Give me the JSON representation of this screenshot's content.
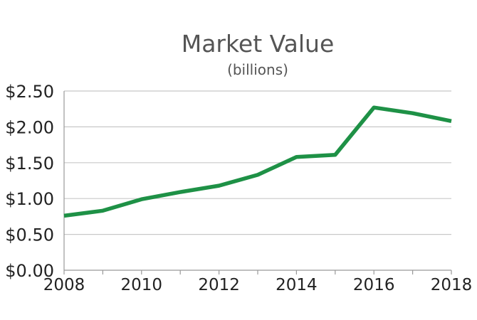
{
  "chart_data": {
    "type": "line",
    "title": "Market Value",
    "subtitle": "(billions)",
    "xlabel": "",
    "ylabel": "",
    "x": [
      2008,
      2009,
      2010,
      2011,
      2012,
      2013,
      2014,
      2015,
      2016,
      2017,
      2018
    ],
    "x_tick_labels": [
      "2008",
      "2010",
      "2012",
      "2014",
      "2016",
      "2018"
    ],
    "x_tick_values": [
      2008,
      2010,
      2012,
      2014,
      2016,
      2018
    ],
    "xlim": [
      2008,
      2018
    ],
    "y_tick_labels": [
      "$0.00",
      "$0.50",
      "$1.00",
      "$1.50",
      "$2.00",
      "$2.50"
    ],
    "y_tick_values": [
      0,
      0.5,
      1,
      1.5,
      2,
      2.5
    ],
    "ylim": [
      0,
      2.5
    ],
    "grid": true,
    "series": [
      {
        "values": [
          0.76,
          0.83,
          0.99,
          1.09,
          1.18,
          1.33,
          1.58,
          1.61,
          2.27,
          2.19,
          2.08
        ],
        "color": "#1e9146"
      }
    ]
  }
}
